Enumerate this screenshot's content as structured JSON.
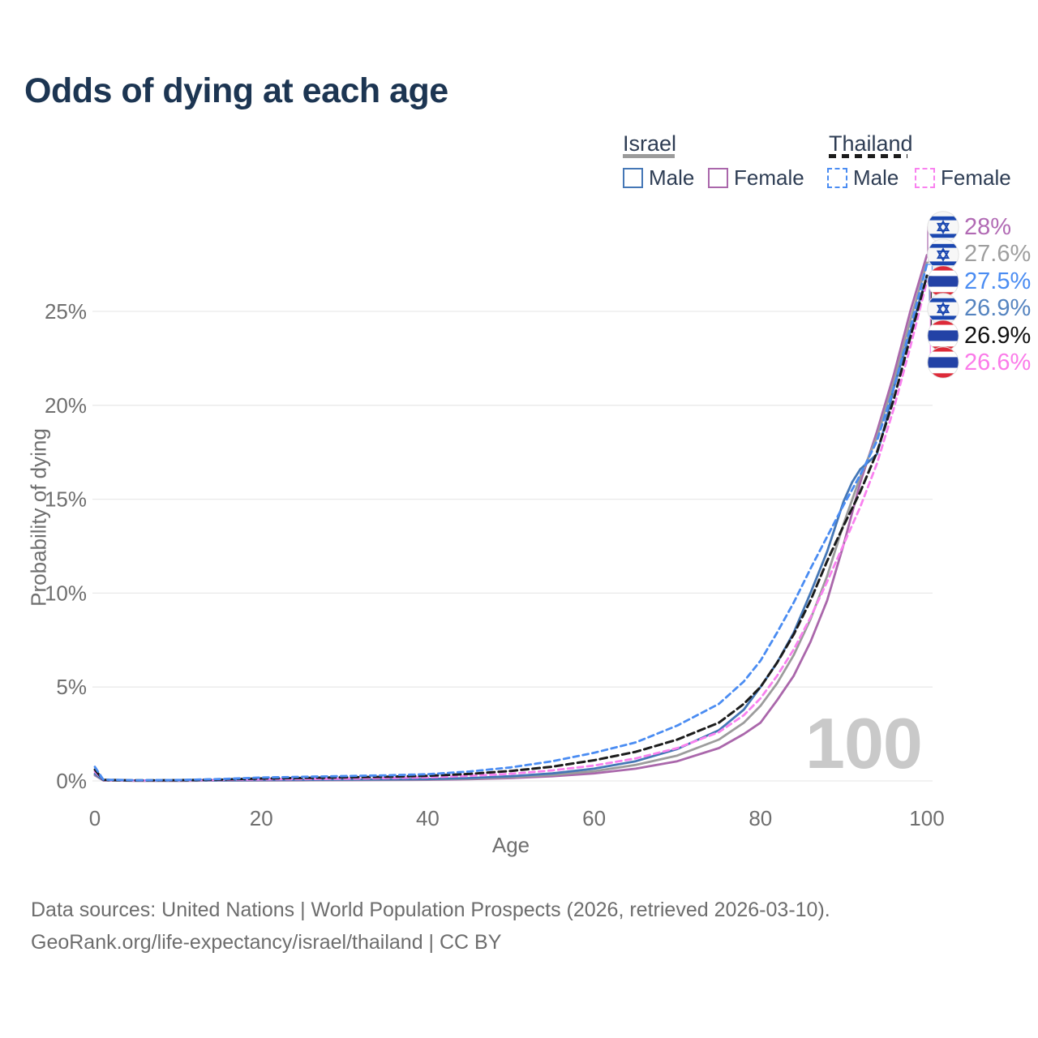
{
  "title": "Odds of dying at each age",
  "watermark": "100",
  "legend": {
    "groups": [
      {
        "label": "Israel",
        "line_style": "solid",
        "underline_color": "#9b9b9b",
        "items": [
          {
            "label": "Male",
            "color": "#4577b6"
          },
          {
            "label": "Female",
            "color": "#aa67ab"
          }
        ]
      },
      {
        "label": "Thailand",
        "line_style": "dashed",
        "underline_color": "#1c1c1c",
        "items": [
          {
            "label": "Male",
            "color": "#4a8cf2"
          },
          {
            "label": "Female",
            "color": "#f981ef"
          }
        ]
      }
    ]
  },
  "chart_data": {
    "type": "line",
    "title": "Odds of dying at each age",
    "xlabel": "Age",
    "ylabel": "Probability of dying",
    "x_unit": "years",
    "y_unit": "%",
    "xlim": [
      0,
      100
    ],
    "ylim": [
      0,
      29
    ],
    "x_ticks": [
      0,
      20,
      40,
      60,
      80,
      100
    ],
    "y_ticks": [
      {
        "v": 0,
        "label": "0%"
      },
      {
        "v": 5,
        "label": "5%"
      },
      {
        "v": 10,
        "label": "10%"
      },
      {
        "v": 15,
        "label": "15%"
      },
      {
        "v": 20,
        "label": "20%"
      },
      {
        "v": 25,
        "label": "25%"
      }
    ],
    "grid": "horizontal",
    "legend_position": "top-right",
    "series": [
      {
        "id": "israel-female",
        "name": "Israel Female",
        "country": "Israel",
        "sex": "Female",
        "color": "#aa67ab",
        "dash": null,
        "width": 2.8,
        "end_label": {
          "text": "28%",
          "flag": "israel",
          "color": "#b16ab4",
          "y": 280
        },
        "points": [
          [
            0,
            0.3
          ],
          [
            1,
            0.03
          ],
          [
            5,
            0.01
          ],
          [
            10,
            0.01
          ],
          [
            15,
            0.02
          ],
          [
            20,
            0.02
          ],
          [
            25,
            0.03
          ],
          [
            30,
            0.04
          ],
          [
            35,
            0.05
          ],
          [
            40,
            0.06
          ],
          [
            45,
            0.09
          ],
          [
            50,
            0.15
          ],
          [
            55,
            0.25
          ],
          [
            60,
            0.4
          ],
          [
            65,
            0.65
          ],
          [
            70,
            1.05
          ],
          [
            75,
            1.75
          ],
          [
            78,
            2.5
          ],
          [
            80,
            3.1
          ],
          [
            82,
            4.3
          ],
          [
            84,
            5.6
          ],
          [
            86,
            7.4
          ],
          [
            88,
            9.6
          ],
          [
            90,
            12.6
          ],
          [
            92,
            15.9
          ],
          [
            94,
            18.6
          ],
          [
            96,
            21.6
          ],
          [
            98,
            25.0
          ],
          [
            100,
            28.0
          ]
        ]
      },
      {
        "id": "israel-both",
        "name": "Israel (both sexes)",
        "country": "Israel",
        "sex": "Both",
        "color": "#9c9c9c",
        "dash": null,
        "width": 2.8,
        "end_label": {
          "text": "27.6%",
          "flag": "israel",
          "color": "#9e9e9e",
          "y": 313.5
        },
        "points": [
          [
            0,
            0.34
          ],
          [
            1,
            0.035
          ],
          [
            5,
            0.015
          ],
          [
            10,
            0.015
          ],
          [
            15,
            0.025
          ],
          [
            20,
            0.035
          ],
          [
            25,
            0.045
          ],
          [
            30,
            0.055
          ],
          [
            35,
            0.065
          ],
          [
            40,
            0.08
          ],
          [
            45,
            0.12
          ],
          [
            50,
            0.2
          ],
          [
            55,
            0.32
          ],
          [
            60,
            0.52
          ],
          [
            65,
            0.85
          ],
          [
            70,
            1.35
          ],
          [
            75,
            2.2
          ],
          [
            78,
            3.1
          ],
          [
            80,
            4.0
          ],
          [
            82,
            5.2
          ],
          [
            84,
            6.7
          ],
          [
            86,
            8.6
          ],
          [
            88,
            10.9
          ],
          [
            90,
            13.7
          ],
          [
            92,
            16.2
          ],
          [
            94,
            18.3
          ],
          [
            96,
            21.2
          ],
          [
            98,
            24.5
          ],
          [
            100,
            27.6
          ]
        ]
      },
      {
        "id": "israel-male",
        "name": "Israel Male",
        "country": "Israel",
        "sex": "Male",
        "color": "#4577b6",
        "dash": null,
        "width": 2.8,
        "end_label": {
          "text": "26.9%",
          "flag": "israel",
          "color": "#5584c0",
          "y": 380.5
        },
        "points": [
          [
            0,
            0.38
          ],
          [
            1,
            0.04
          ],
          [
            5,
            0.02
          ],
          [
            10,
            0.02
          ],
          [
            15,
            0.03
          ],
          [
            20,
            0.05
          ],
          [
            25,
            0.06
          ],
          [
            30,
            0.07
          ],
          [
            35,
            0.08
          ],
          [
            40,
            0.1
          ],
          [
            45,
            0.15
          ],
          [
            50,
            0.25
          ],
          [
            55,
            0.4
          ],
          [
            60,
            0.65
          ],
          [
            65,
            1.05
          ],
          [
            70,
            1.7
          ],
          [
            75,
            2.7
          ],
          [
            78,
            3.8
          ],
          [
            80,
            5.0
          ],
          [
            82,
            6.3
          ],
          [
            84,
            7.9
          ],
          [
            86,
            10.0
          ],
          [
            88,
            12.2
          ],
          [
            90,
            14.9
          ],
          [
            91,
            15.9
          ],
          [
            92,
            16.6
          ],
          [
            93,
            17.0
          ],
          [
            94,
            17.4
          ],
          [
            95,
            19.0
          ],
          [
            96,
            20.9
          ],
          [
            97,
            22.4
          ],
          [
            98,
            23.9
          ],
          [
            99,
            25.4
          ],
          [
            100,
            26.9
          ]
        ]
      },
      {
        "id": "thailand-female",
        "name": "Thailand Female",
        "country": "Thailand",
        "sex": "Female",
        "color": "#f981ef",
        "dash": "7 5",
        "width": 2.8,
        "end_label": {
          "text": "26.6%",
          "flag": "thailand",
          "color": "#fb7be9",
          "y": 447
        },
        "points": [
          [
            0,
            0.5
          ],
          [
            1,
            0.045
          ],
          [
            5,
            0.025
          ],
          [
            10,
            0.03
          ],
          [
            15,
            0.05
          ],
          [
            20,
            0.08
          ],
          [
            25,
            0.1
          ],
          [
            30,
            0.12
          ],
          [
            35,
            0.15
          ],
          [
            40,
            0.19
          ],
          [
            45,
            0.27
          ],
          [
            50,
            0.38
          ],
          [
            55,
            0.56
          ],
          [
            60,
            0.82
          ],
          [
            65,
            1.2
          ],
          [
            70,
            1.75
          ],
          [
            75,
            2.6
          ],
          [
            78,
            3.5
          ],
          [
            80,
            4.4
          ],
          [
            82,
            5.6
          ],
          [
            84,
            7.0
          ],
          [
            86,
            8.7
          ],
          [
            88,
            10.6
          ],
          [
            90,
            12.6
          ],
          [
            92,
            14.6
          ],
          [
            94,
            16.9
          ],
          [
            96,
            19.8
          ],
          [
            98,
            23.1
          ],
          [
            100,
            26.6
          ]
        ]
      },
      {
        "id": "thailand-both",
        "name": "Thailand (both sexes)",
        "country": "Thailand",
        "sex": "Both",
        "color": "#1c1c1c",
        "dash": "9 5",
        "width": 3,
        "end_label": {
          "text": "26.9%",
          "flag": "thailand",
          "color": "#111111",
          "y": 414
        },
        "points": [
          [
            0,
            0.6
          ],
          [
            1,
            0.055
          ],
          [
            5,
            0.03
          ],
          [
            10,
            0.04
          ],
          [
            15,
            0.07
          ],
          [
            20,
            0.13
          ],
          [
            25,
            0.16
          ],
          [
            30,
            0.19
          ],
          [
            35,
            0.22
          ],
          [
            40,
            0.27
          ],
          [
            45,
            0.37
          ],
          [
            50,
            0.53
          ],
          [
            55,
            0.76
          ],
          [
            60,
            1.1
          ],
          [
            65,
            1.55
          ],
          [
            70,
            2.2
          ],
          [
            75,
            3.1
          ],
          [
            78,
            4.1
          ],
          [
            80,
            5.0
          ],
          [
            82,
            6.3
          ],
          [
            84,
            7.8
          ],
          [
            86,
            9.6
          ],
          [
            88,
            11.7
          ],
          [
            90,
            13.6
          ],
          [
            92,
            15.4
          ],
          [
            94,
            17.5
          ],
          [
            96,
            20.3
          ],
          [
            98,
            23.6
          ],
          [
            100,
            26.9
          ]
        ]
      },
      {
        "id": "thailand-male",
        "name": "Thailand Male",
        "country": "Thailand",
        "sex": "Male",
        "color": "#4a8cf2",
        "dash": "7 5",
        "width": 2.8,
        "end_label": {
          "text": "27.5%",
          "flag": "thailand",
          "color": "#4a8cf2",
          "y": 347
        },
        "points": [
          [
            0,
            0.75
          ],
          [
            1,
            0.07
          ],
          [
            5,
            0.04
          ],
          [
            10,
            0.05
          ],
          [
            15,
            0.1
          ],
          [
            20,
            0.18
          ],
          [
            25,
            0.22
          ],
          [
            30,
            0.26
          ],
          [
            35,
            0.3
          ],
          [
            40,
            0.36
          ],
          [
            45,
            0.5
          ],
          [
            50,
            0.72
          ],
          [
            55,
            1.05
          ],
          [
            60,
            1.5
          ],
          [
            65,
            2.05
          ],
          [
            70,
            2.95
          ],
          [
            75,
            4.1
          ],
          [
            78,
            5.3
          ],
          [
            80,
            6.4
          ],
          [
            82,
            7.9
          ],
          [
            84,
            9.5
          ],
          [
            86,
            11.3
          ],
          [
            88,
            13.0
          ],
          [
            90,
            14.7
          ],
          [
            92,
            16.3
          ],
          [
            94,
            18.1
          ],
          [
            96,
            20.9
          ],
          [
            98,
            24.1
          ],
          [
            100,
            27.5
          ]
        ]
      }
    ],
    "flag_colors": {
      "israel_blue": "#1b47b0",
      "thailand_red": "#dd2a39",
      "thailand_blue": "#2342a6",
      "thailand_white": "#ffffff"
    }
  },
  "footer": {
    "line1": "Data sources: United Nations | World Population Prospects (2026, retrieved 2026-03-10).",
    "line2": "GeoRank.org/life-expectancy/israel/thailand | CC BY"
  }
}
